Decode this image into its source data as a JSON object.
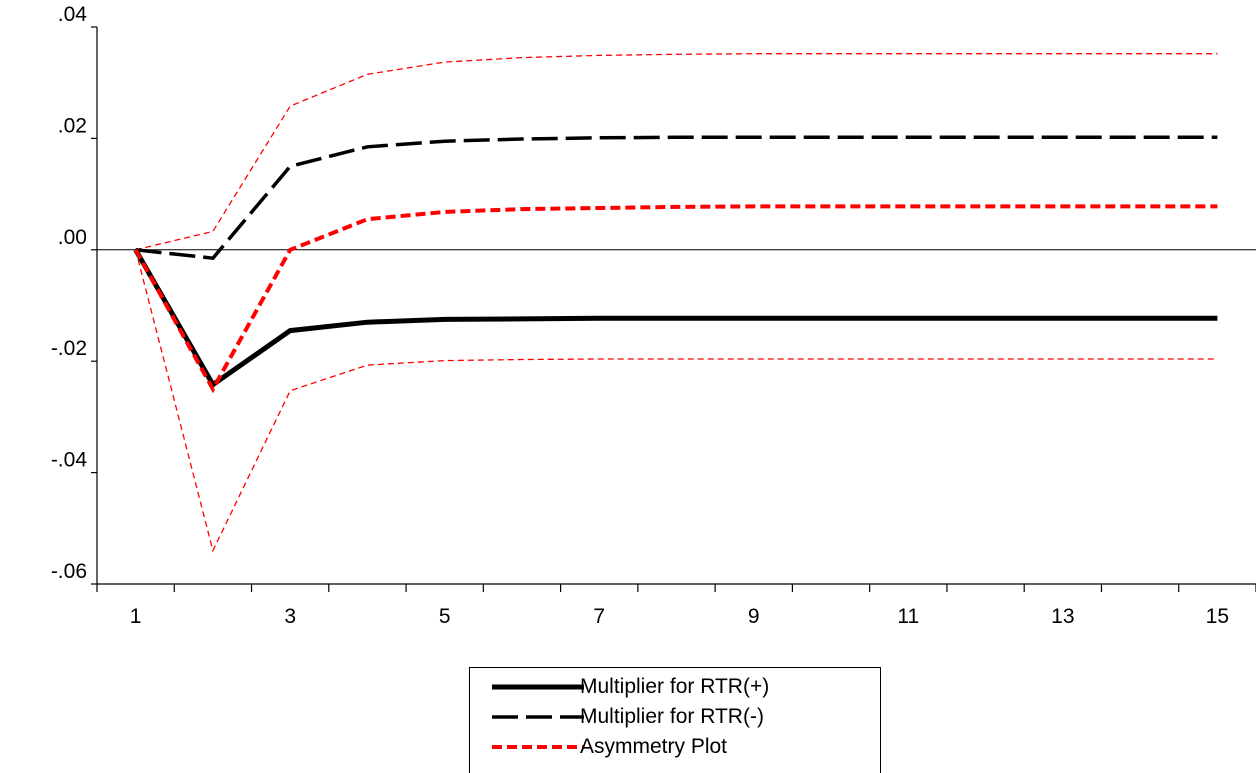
{
  "chart_data": {
    "type": "line",
    "x": [
      1,
      2,
      3,
      4,
      5,
      6,
      7,
      8,
      9,
      10,
      11,
      12,
      13,
      14,
      15
    ],
    "x_tick_labels": [
      "1",
      "3",
      "5",
      "7",
      "9",
      "11",
      "13",
      "15"
    ],
    "y_tick_labels": [
      ".04",
      ".02",
      ".00",
      "-.02",
      "-.04",
      "-.06"
    ],
    "ylim": [
      -0.06,
      0.04
    ],
    "xlim": [
      0.5,
      15.5
    ],
    "zero_line": true,
    "legend_position": "bottom-center",
    "series": [
      {
        "name": "Multiplier for RTR(+)",
        "color": "#000000",
        "style": "solid-thick",
        "values": [
          0.0,
          -0.0242,
          -0.0145,
          -0.013,
          -0.0125,
          -0.0124,
          -0.0123,
          -0.0123,
          -0.0123,
          -0.0123,
          -0.0123,
          -0.0123,
          -0.0123,
          -0.0123,
          -0.0123
        ]
      },
      {
        "name": "Multiplier for RTR(-)",
        "color": "#000000",
        "style": "long-dash",
        "values": [
          0.0,
          -0.0015,
          0.015,
          0.0185,
          0.0195,
          0.0199,
          0.0201,
          0.0202,
          0.0202,
          0.0202,
          0.0202,
          0.0202,
          0.0202,
          0.0202,
          0.0202
        ]
      },
      {
        "name": "Asymmetry Plot",
        "color": "#ff0000",
        "style": "short-dash",
        "values": [
          0.0,
          -0.025,
          0.0,
          0.0055,
          0.0068,
          0.0073,
          0.0075,
          0.0077,
          0.0078,
          0.0078,
          0.0078,
          0.0078,
          0.0078,
          0.0078,
          0.0078
        ]
      },
      {
        "color": "#ff0000",
        "style": "thin-dash",
        "values": [
          0.0,
          0.0033,
          0.0258,
          0.0315,
          0.0337,
          0.0345,
          0.0349,
          0.0351,
          0.0352,
          0.0352,
          0.0352,
          0.0352,
          0.0352,
          0.0352,
          0.0352
        ]
      },
      {
        "color": "#ff0000",
        "style": "thin-dash",
        "values": [
          0.0,
          -0.054,
          -0.0253,
          -0.0207,
          -0.0199,
          -0.0197,
          -0.0196,
          -0.0196,
          -0.0196,
          -0.0196,
          -0.0196,
          -0.0196,
          -0.0196,
          -0.0196,
          -0.0196
        ]
      }
    ]
  }
}
